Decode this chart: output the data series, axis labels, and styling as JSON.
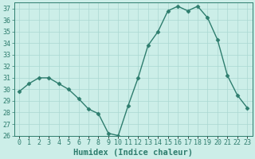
{
  "x": [
    0,
    1,
    2,
    3,
    4,
    5,
    6,
    7,
    8,
    9,
    10,
    11,
    12,
    13,
    14,
    15,
    16,
    17,
    18,
    19,
    20,
    21,
    22,
    23
  ],
  "y": [
    29.8,
    30.5,
    31.0,
    31.0,
    30.5,
    30.0,
    29.2,
    28.3,
    27.9,
    26.2,
    26.0,
    28.6,
    31.0,
    33.8,
    35.0,
    36.8,
    37.2,
    36.8,
    37.2,
    36.2,
    34.3,
    31.2,
    29.5,
    28.4
  ],
  "line_color": "#2e7d6e",
  "marker": "D",
  "markersize": 2.5,
  "linewidth": 1.0,
  "bg_color": "#cceee8",
  "grid_color": "#aad8d2",
  "xlabel": "Humidex (Indice chaleur)",
  "ylim": [
    26,
    37.5
  ],
  "xlim": [
    -0.5,
    23.5
  ],
  "yticks": [
    26,
    27,
    28,
    29,
    30,
    31,
    32,
    33,
    34,
    35,
    36,
    37
  ],
  "xtick_labels": [
    "0",
    "1",
    "2",
    "3",
    "4",
    "5",
    "6",
    "7",
    "8",
    "9",
    "10",
    "11",
    "12",
    "13",
    "14",
    "15",
    "16",
    "17",
    "18",
    "19",
    "20",
    "21",
    "22",
    "23"
  ],
  "tick_fontsize": 6,
  "xlabel_fontsize": 7.5,
  "tick_color": "#2e7d6e",
  "spine_color": "#2e7d6e"
}
